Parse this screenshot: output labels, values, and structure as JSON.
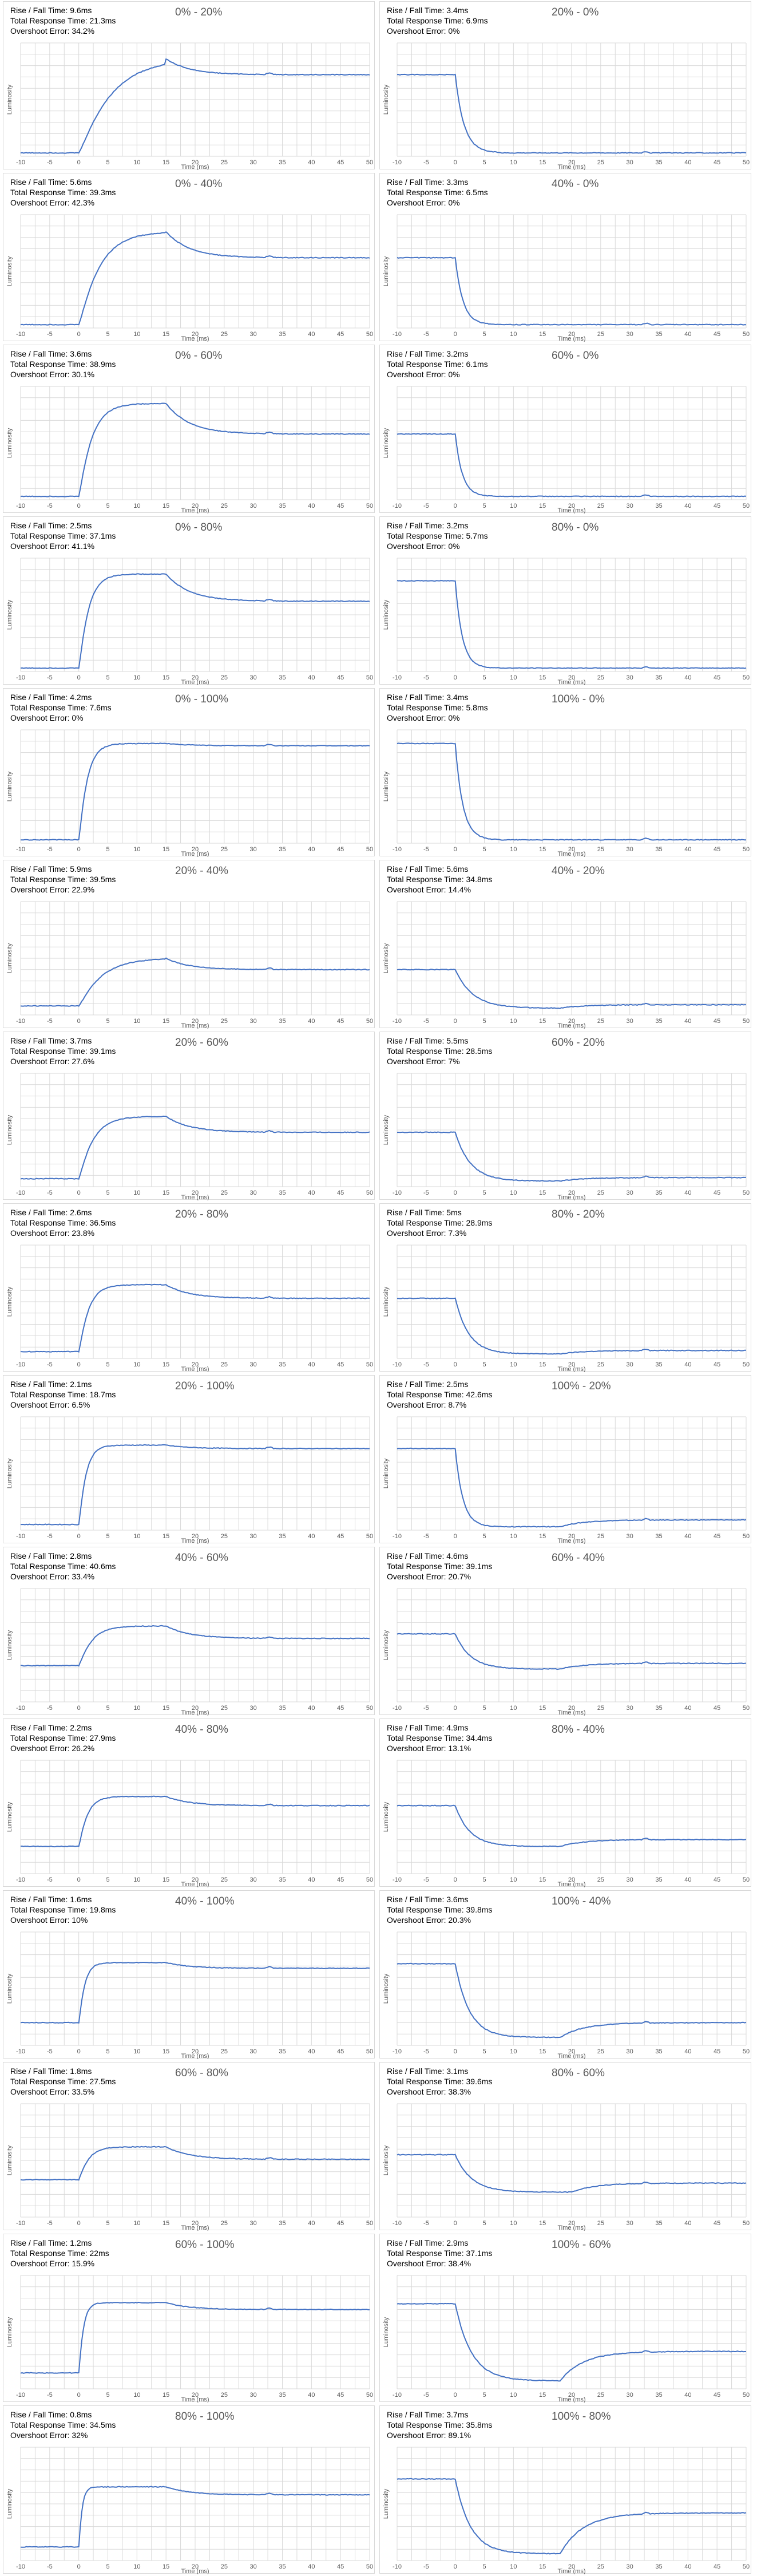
{
  "axis": {
    "xlabel": "Time (ms)",
    "ylabel": "Luminosity",
    "xticks": [
      -10,
      -5,
      0,
      5,
      10,
      15,
      20,
      25,
      30,
      35,
      40,
      45,
      50
    ],
    "xlim": [
      -10,
      50
    ]
  },
  "labels": {
    "rise_fall": "Rise / Fall Time:",
    "total": "Total Response Time:",
    "overshoot": "Overshoot Error:"
  },
  "colors": {
    "line": "#4472c4",
    "grid": "#d9d9d9",
    "text": "#595959"
  },
  "chart_data": [
    {
      "type": "line",
      "title": "0% - 20%",
      "rise_fall": "9.6ms",
      "total": "21.3ms",
      "overshoot": "34.2%",
      "kind": "rise",
      "start": 0.03,
      "peak": 0.86,
      "final": 0.72,
      "tau": 5.0,
      "peak_t": 15
    },
    {
      "type": "line",
      "title": "20% - 0%",
      "rise_fall": "3.4ms",
      "total": "6.9ms",
      "overshoot": "0%",
      "kind": "fall",
      "start": 0.72,
      "peak": 0.03,
      "final": 0.03,
      "tau": 1.5,
      "peak_t": 8
    },
    {
      "type": "line",
      "title": "0% - 40%",
      "rise_fall": "5.6ms",
      "total": "39.3ms",
      "overshoot": "42.3%",
      "kind": "rise",
      "start": 0.03,
      "peak": 0.85,
      "final": 0.62,
      "tau": 3.2,
      "peak_t": 15
    },
    {
      "type": "line",
      "title": "40% - 0%",
      "rise_fall": "3.3ms",
      "total": "6.5ms",
      "overshoot": "0%",
      "kind": "fall",
      "start": 0.62,
      "peak": 0.03,
      "final": 0.03,
      "tau": 1.3,
      "peak_t": 8
    },
    {
      "type": "line",
      "title": "0% - 60%",
      "rise_fall": "3.6ms",
      "total": "38.9ms",
      "overshoot": "30.1%",
      "kind": "rise",
      "start": 0.03,
      "peak": 0.85,
      "final": 0.58,
      "tau": 2.0,
      "peak_t": 15
    },
    {
      "type": "line",
      "title": "60% - 0%",
      "rise_fall": "3.2ms",
      "total": "6.1ms",
      "overshoot": "0%",
      "kind": "fall",
      "start": 0.58,
      "peak": 0.03,
      "final": 0.03,
      "tau": 1.2,
      "peak_t": 8
    },
    {
      "type": "line",
      "title": "0% - 80%",
      "rise_fall": "2.5ms",
      "total": "37.1ms",
      "overshoot": "41.1%",
      "kind": "rise",
      "start": 0.03,
      "peak": 0.86,
      "final": 0.62,
      "tau": 1.5,
      "peak_t": 15
    },
    {
      "type": "line",
      "title": "80% - 0%",
      "rise_fall": "3.2ms",
      "total": "5.7ms",
      "overshoot": "0%",
      "kind": "fall",
      "start": 0.8,
      "peak": 0.03,
      "final": 0.03,
      "tau": 1.2,
      "peak_t": 8
    },
    {
      "type": "line",
      "title": "0% - 100%",
      "rise_fall": "4.2ms",
      "total": "7.6ms",
      "overshoot": "0%",
      "kind": "rise",
      "start": 0.03,
      "peak": 0.88,
      "final": 0.86,
      "tau": 1.3,
      "peak_t": 15
    },
    {
      "type": "line",
      "title": "100% - 0%",
      "rise_fall": "3.4ms",
      "total": "5.8ms",
      "overshoot": "0%",
      "kind": "fall",
      "start": 0.88,
      "peak": 0.03,
      "final": 0.03,
      "tau": 1.3,
      "peak_t": 8
    },
    {
      "type": "line",
      "title": "20% - 40%",
      "rise_fall": "5.9ms",
      "total": "39.5ms",
      "overshoot": "22.9%",
      "kind": "rise",
      "start": 0.08,
      "peak": 0.5,
      "final": 0.4,
      "tau": 3.5,
      "peak_t": 15
    },
    {
      "type": "line",
      "title": "40% - 20%",
      "rise_fall": "5.6ms",
      "total": "34.8ms",
      "overshoot": "14.4%",
      "kind": "fall",
      "start": 0.4,
      "peak": 0.06,
      "final": 0.09,
      "tau": 3.0,
      "peak_t": 18
    },
    {
      "type": "line",
      "title": "20% - 60%",
      "rise_fall": "3.7ms",
      "total": "39.1ms",
      "overshoot": "27.6%",
      "kind": "rise",
      "start": 0.07,
      "peak": 0.62,
      "final": 0.48,
      "tau": 2.2,
      "peak_t": 15
    },
    {
      "type": "line",
      "title": "60% - 20%",
      "rise_fall": "5.5ms",
      "total": "28.5ms",
      "overshoot": "7%",
      "kind": "fall",
      "start": 0.48,
      "peak": 0.05,
      "final": 0.08,
      "tau": 2.6,
      "peak_t": 18
    },
    {
      "type": "line",
      "title": "20% - 80%",
      "rise_fall": "2.6ms",
      "total": "36.5ms",
      "overshoot": "23.8%",
      "kind": "rise",
      "start": 0.06,
      "peak": 0.65,
      "final": 0.53,
      "tau": 1.5,
      "peak_t": 15
    },
    {
      "type": "line",
      "title": "80% - 20%",
      "rise_fall": "5ms",
      "total": "28.9ms",
      "overshoot": "7.3%",
      "kind": "fall",
      "start": 0.53,
      "peak": 0.04,
      "final": 0.07,
      "tau": 2.3,
      "peak_t": 18
    },
    {
      "type": "line",
      "title": "20% - 100%",
      "rise_fall": "2.1ms",
      "total": "18.7ms",
      "overshoot": "6.5%",
      "kind": "rise",
      "start": 0.05,
      "peak": 0.75,
      "final": 0.72,
      "tau": 1.1,
      "peak_t": 15
    },
    {
      "type": "line",
      "title": "100% - 20%",
      "rise_fall": "2.5ms",
      "total": "42.6ms",
      "overshoot": "8.7%",
      "kind": "fall",
      "start": 0.72,
      "peak": 0.03,
      "final": 0.09,
      "tau": 1.3,
      "peak_t": 18
    },
    {
      "type": "line",
      "title": "40% - 60%",
      "rise_fall": "2.8ms",
      "total": "40.6ms",
      "overshoot": "33.4%",
      "kind": "rise",
      "start": 0.32,
      "peak": 0.67,
      "final": 0.56,
      "tau": 2.0,
      "peak_t": 15
    },
    {
      "type": "line",
      "title": "60% - 40%",
      "rise_fall": "4.6ms",
      "total": "39.1ms",
      "overshoot": "20.7%",
      "kind": "fall",
      "start": 0.6,
      "peak": 0.29,
      "final": 0.34,
      "tau": 2.6,
      "peak_t": 18
    },
    {
      "type": "line",
      "title": "40% - 80%",
      "rise_fall": "2.2ms",
      "total": "27.9ms",
      "overshoot": "26.2%",
      "kind": "rise",
      "start": 0.24,
      "peak": 0.68,
      "final": 0.6,
      "tau": 1.3,
      "peak_t": 15
    },
    {
      "type": "line",
      "title": "80% - 40%",
      "rise_fall": "4.9ms",
      "total": "34.4ms",
      "overshoot": "13.1%",
      "kind": "fall",
      "start": 0.6,
      "peak": 0.24,
      "final": 0.3,
      "tau": 2.5,
      "peak_t": 18
    },
    {
      "type": "line",
      "title": "40% - 100%",
      "rise_fall": "1.6ms",
      "total": "19.8ms",
      "overshoot": "10%",
      "kind": "rise",
      "start": 0.2,
      "peak": 0.73,
      "final": 0.68,
      "tau": 0.9,
      "peak_t": 15
    },
    {
      "type": "line",
      "title": "100% - 40%",
      "rise_fall": "3.6ms",
      "total": "39.8ms",
      "overshoot": "20.3%",
      "kind": "fall",
      "start": 0.72,
      "peak": 0.07,
      "final": 0.2,
      "tau": 2.4,
      "peak_t": 18
    },
    {
      "type": "line",
      "title": "60% - 80%",
      "rise_fall": "1.8ms",
      "total": "27.5ms",
      "overshoot": "33.5%",
      "kind": "rise",
      "start": 0.33,
      "peak": 0.62,
      "final": 0.51,
      "tau": 1.5,
      "peak_t": 15
    },
    {
      "type": "line",
      "title": "80% - 60%",
      "rise_fall": "3.1ms",
      "total": "39.6ms",
      "overshoot": "38.3%",
      "kind": "fall",
      "start": 0.55,
      "peak": 0.22,
      "final": 0.3,
      "tau": 2.8,
      "peak_t": 20
    },
    {
      "type": "line",
      "title": "60% - 100%",
      "rise_fall": "1.2ms",
      "total": "22ms",
      "overshoot": "15.9%",
      "kind": "rise",
      "start": 0.14,
      "peak": 0.76,
      "final": 0.7,
      "tau": 0.7,
      "peak_t": 15
    },
    {
      "type": "line",
      "title": "100% - 60%",
      "rise_fall": "2.9ms",
      "total": "37.1ms",
      "overshoot": "38.4%",
      "kind": "fall",
      "start": 0.75,
      "peak": 0.07,
      "final": 0.33,
      "tau": 2.8,
      "peak_t": 18
    },
    {
      "type": "line",
      "title": "80% - 100%",
      "rise_fall": "0.8ms",
      "total": "34.5ms",
      "overshoot": "32%",
      "kind": "rise",
      "start": 0.12,
      "peak": 0.65,
      "final": 0.58,
      "tau": 0.5,
      "peak_t": 15
    },
    {
      "type": "line",
      "title": "100% - 80%",
      "rise_fall": "3.7ms",
      "total": "35.8ms",
      "overshoot": "89.1%",
      "kind": "fall",
      "start": 0.72,
      "peak": 0.06,
      "final": 0.42,
      "tau": 2.6,
      "peak_t": 18
    }
  ]
}
